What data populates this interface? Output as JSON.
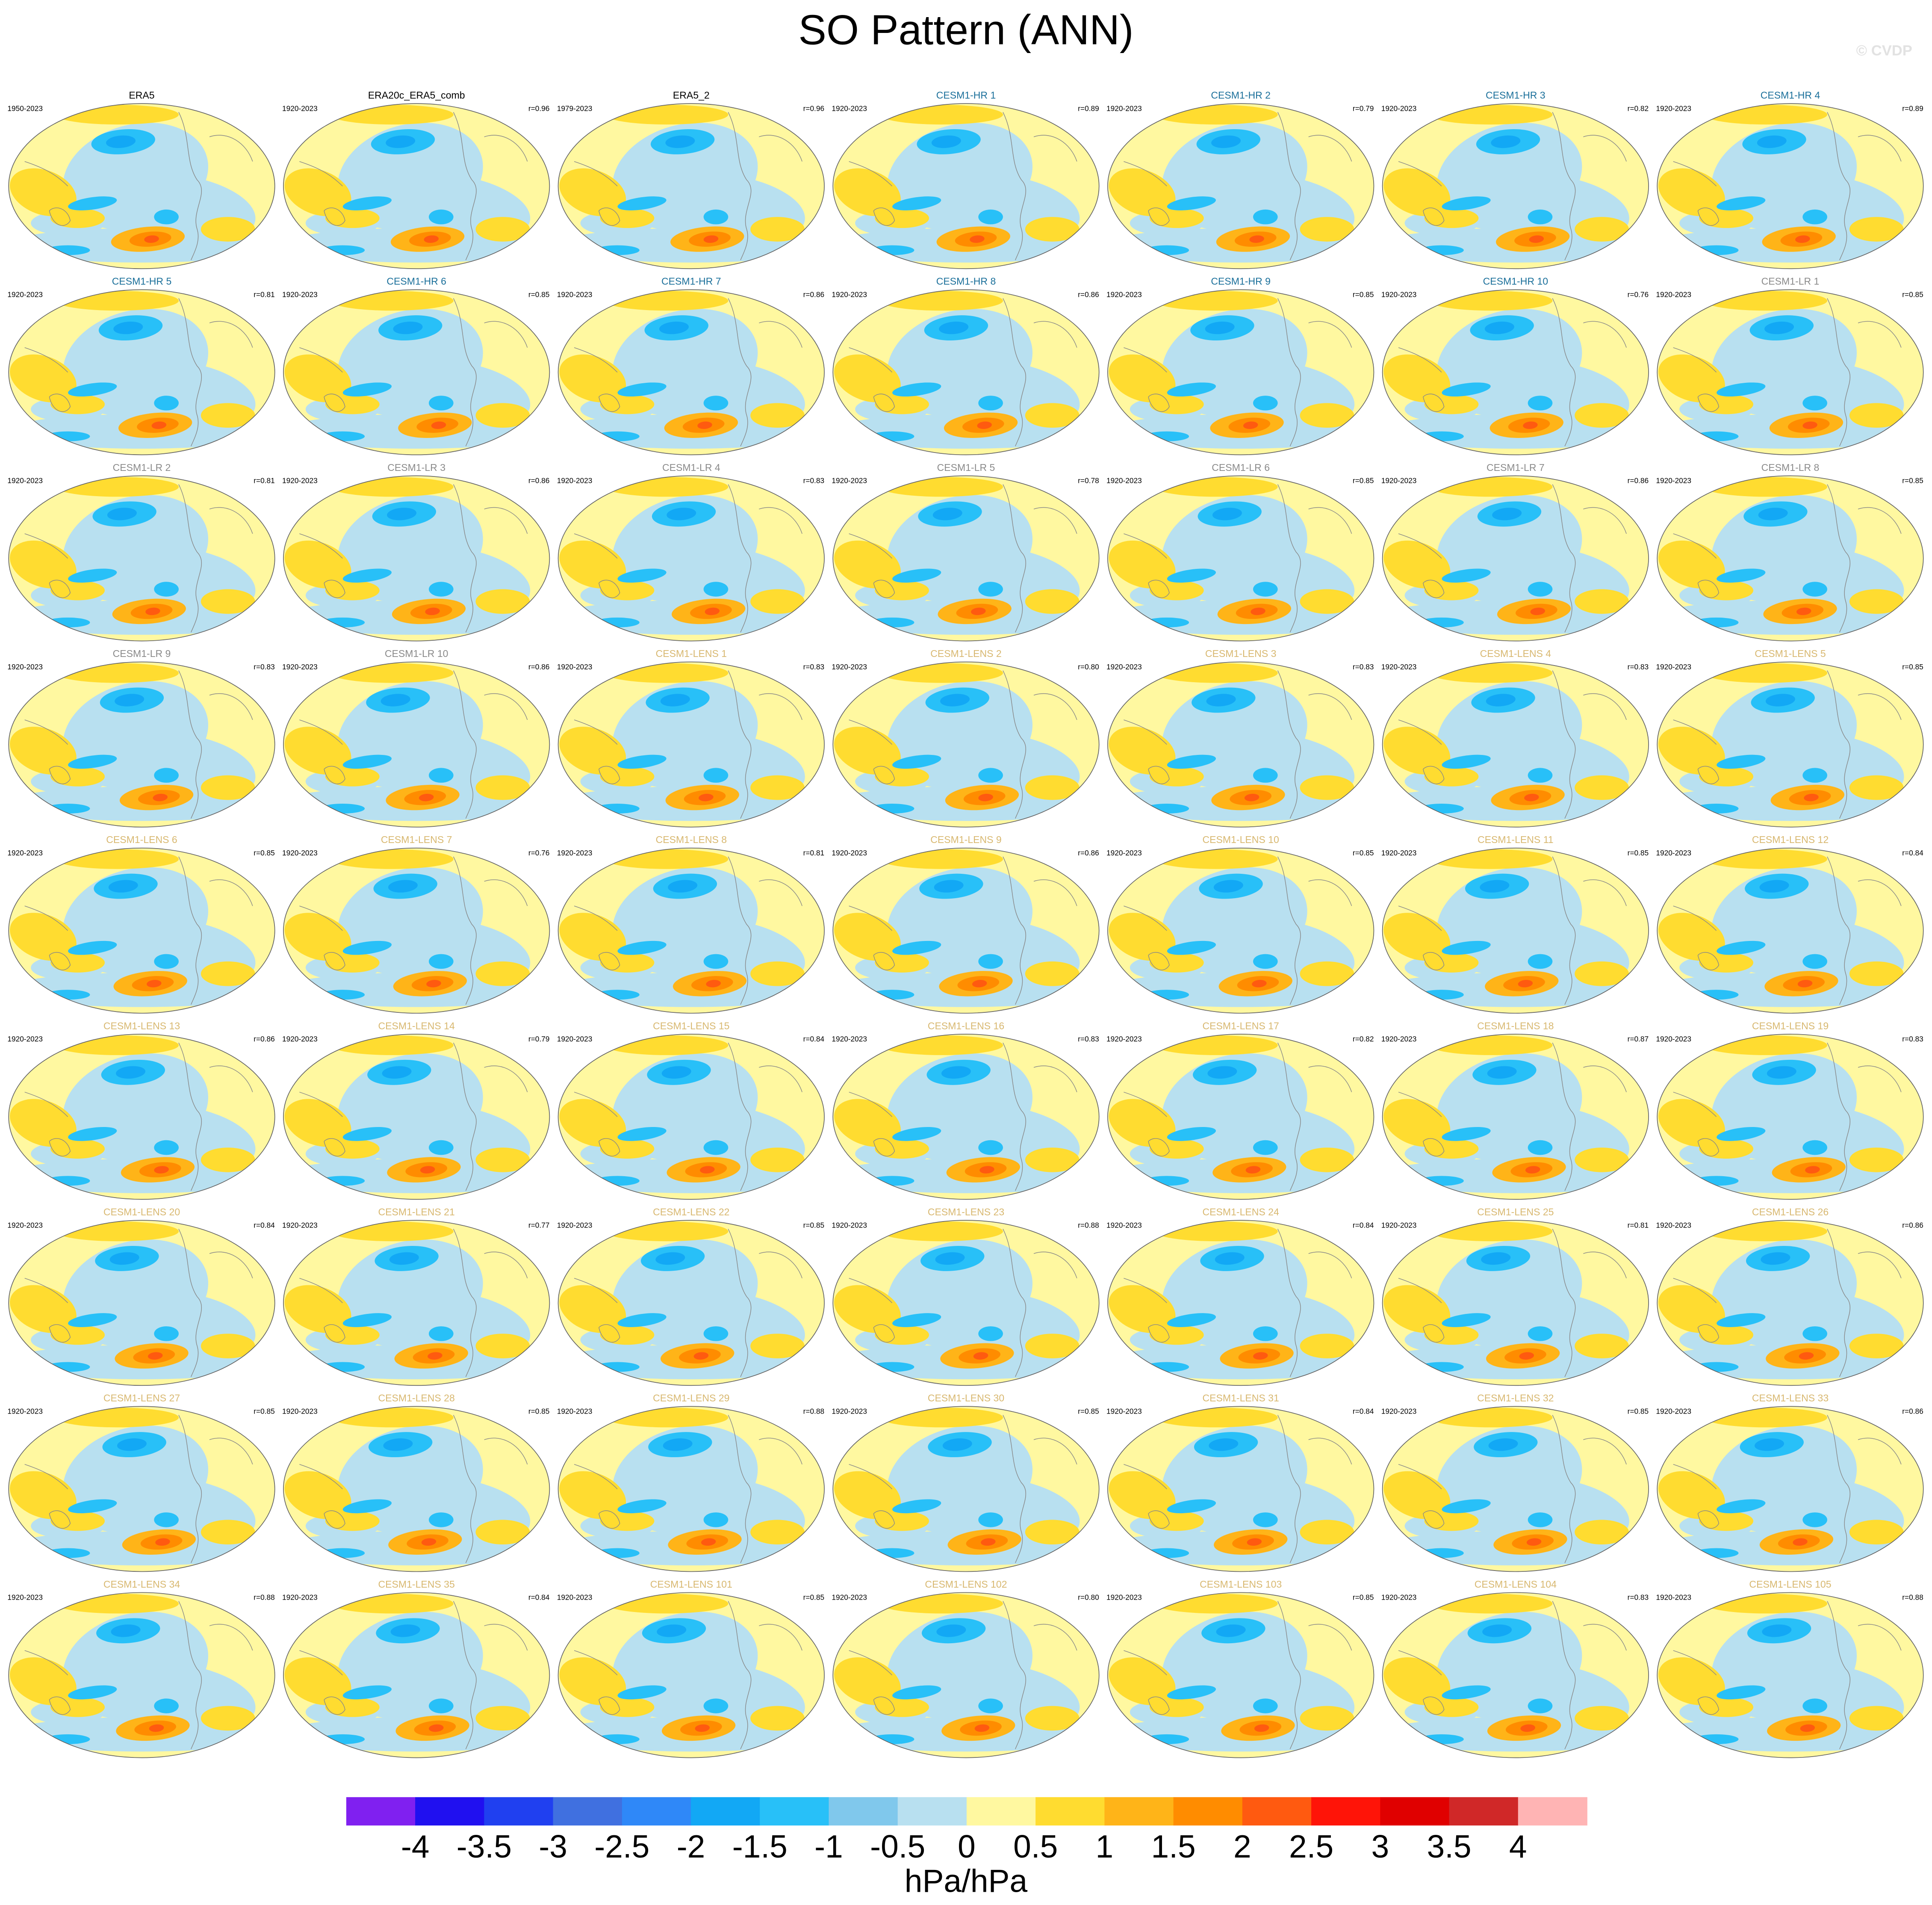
{
  "header": {
    "title": "SO Pattern (ANN)",
    "watermark": "© CVDP"
  },
  "panels": [
    {
      "title": "ERA5",
      "period": "1950-2023",
      "title_color": "#000000"
    },
    {
      "title": "ERA20c_ERA5_comb",
      "period": "1920-2023",
      "r": "r=0.96",
      "title_color": "#000000"
    },
    {
      "title": "ERA5_2",
      "period": "1979-2023",
      "r": "r=0.96",
      "title_color": "#000000"
    },
    {
      "title": "CESM1-HR 1",
      "period": "1920-2023",
      "r": "r=0.89",
      "title_color": "#1a6f9a"
    },
    {
      "title": "CESM1-HR 2",
      "period": "1920-2023",
      "r": "r=0.79",
      "title_color": "#1a6f9a"
    },
    {
      "title": "CESM1-HR 3",
      "period": "1920-2023",
      "r": "r=0.82",
      "title_color": "#1a6f9a"
    },
    {
      "title": "CESM1-HR 4",
      "period": "1920-2023",
      "r": "r=0.89",
      "title_color": "#1a6f9a"
    },
    {
      "title": "CESM1-HR 5",
      "period": "1920-2023",
      "r": "r=0.81",
      "title_color": "#1a6f9a"
    },
    {
      "title": "CESM1-HR 6",
      "period": "1920-2023",
      "r": "r=0.85",
      "title_color": "#1a6f9a"
    },
    {
      "title": "CESM1-HR 7",
      "period": "1920-2023",
      "r": "r=0.86",
      "title_color": "#1a6f9a"
    },
    {
      "title": "CESM1-HR 8",
      "period": "1920-2023",
      "r": "r=0.86",
      "title_color": "#1a6f9a"
    },
    {
      "title": "CESM1-HR 9",
      "period": "1920-2023",
      "r": "r=0.85",
      "title_color": "#1a6f9a"
    },
    {
      "title": "CESM1-HR 10",
      "period": "1920-2023",
      "r": "r=0.76",
      "title_color": "#1a6f9a"
    },
    {
      "title": "CESM1-LR 1",
      "period": "1920-2023",
      "r": "r=0.85",
      "title_color": "#8a8a8a"
    },
    {
      "title": "CESM1-LR 2",
      "period": "1920-2023",
      "r": "r=0.81",
      "title_color": "#8a8a8a"
    },
    {
      "title": "CESM1-LR 3",
      "period": "1920-2023",
      "r": "r=0.86",
      "title_color": "#8a8a8a"
    },
    {
      "title": "CESM1-LR 4",
      "period": "1920-2023",
      "r": "r=0.83",
      "title_color": "#8a8a8a"
    },
    {
      "title": "CESM1-LR 5",
      "period": "1920-2023",
      "r": "r=0.78",
      "title_color": "#8a8a8a"
    },
    {
      "title": "CESM1-LR 6",
      "period": "1920-2023",
      "r": "r=0.85",
      "title_color": "#8a8a8a"
    },
    {
      "title": "CESM1-LR 7",
      "period": "1920-2023",
      "r": "r=0.86",
      "title_color": "#8a8a8a"
    },
    {
      "title": "CESM1-LR 8",
      "period": "1920-2023",
      "r": "r=0.85",
      "title_color": "#8a8a8a"
    },
    {
      "title": "CESM1-LR 9",
      "period": "1920-2023",
      "r": "r=0.83",
      "title_color": "#8a8a8a"
    },
    {
      "title": "CESM1-LR 10",
      "period": "1920-2023",
      "r": "r=0.86",
      "title_color": "#8a8a8a"
    },
    {
      "title": "CESM1-LENS 1",
      "period": "1920-2023",
      "r": "r=0.83",
      "title_color": "#d8b870"
    },
    {
      "title": "CESM1-LENS 2",
      "period": "1920-2023",
      "r": "r=0.80",
      "title_color": "#d8b870"
    },
    {
      "title": "CESM1-LENS 3",
      "period": "1920-2023",
      "r": "r=0.83",
      "title_color": "#d8b870"
    },
    {
      "title": "CESM1-LENS 4",
      "period": "1920-2023",
      "r": "r=0.83",
      "title_color": "#d8b870"
    },
    {
      "title": "CESM1-LENS 5",
      "period": "1920-2023",
      "r": "r=0.85",
      "title_color": "#d8b870"
    },
    {
      "title": "CESM1-LENS 6",
      "period": "1920-2023",
      "r": "r=0.85",
      "title_color": "#d8b870"
    },
    {
      "title": "CESM1-LENS 7",
      "period": "1920-2023",
      "r": "r=0.76",
      "title_color": "#d8b870"
    },
    {
      "title": "CESM1-LENS 8",
      "period": "1920-2023",
      "r": "r=0.81",
      "title_color": "#d8b870"
    },
    {
      "title": "CESM1-LENS 9",
      "period": "1920-2023",
      "r": "r=0.86",
      "title_color": "#d8b870"
    },
    {
      "title": "CESM1-LENS 10",
      "period": "1920-2023",
      "r": "r=0.85",
      "title_color": "#d8b870"
    },
    {
      "title": "CESM1-LENS 11",
      "period": "1920-2023",
      "r": "r=0.85",
      "title_color": "#d8b870"
    },
    {
      "title": "CESM1-LENS 12",
      "period": "1920-2023",
      "r": "r=0.84",
      "title_color": "#d8b870"
    },
    {
      "title": "CESM1-LENS 13",
      "period": "1920-2023",
      "r": "r=0.86",
      "title_color": "#d8b870"
    },
    {
      "title": "CESM1-LENS 14",
      "period": "1920-2023",
      "r": "r=0.79",
      "title_color": "#d8b870"
    },
    {
      "title": "CESM1-LENS 15",
      "period": "1920-2023",
      "r": "r=0.84",
      "title_color": "#d8b870"
    },
    {
      "title": "CESM1-LENS 16",
      "period": "1920-2023",
      "r": "r=0.83",
      "title_color": "#d8b870"
    },
    {
      "title": "CESM1-LENS 17",
      "period": "1920-2023",
      "r": "r=0.82",
      "title_color": "#d8b870"
    },
    {
      "title": "CESM1-LENS 18",
      "period": "1920-2023",
      "r": "r=0.87",
      "title_color": "#d8b870"
    },
    {
      "title": "CESM1-LENS 19",
      "period": "1920-2023",
      "r": "r=0.83",
      "title_color": "#d8b870"
    },
    {
      "title": "CESM1-LENS 20",
      "period": "1920-2023",
      "r": "r=0.84",
      "title_color": "#d8b870"
    },
    {
      "title": "CESM1-LENS 21",
      "period": "1920-2023",
      "r": "r=0.77",
      "title_color": "#d8b870"
    },
    {
      "title": "CESM1-LENS 22",
      "period": "1920-2023",
      "r": "r=0.85",
      "title_color": "#d8b870"
    },
    {
      "title": "CESM1-LENS 23",
      "period": "1920-2023",
      "r": "r=0.88",
      "title_color": "#d8b870"
    },
    {
      "title": "CESM1-LENS 24",
      "period": "1920-2023",
      "r": "r=0.84",
      "title_color": "#d8b870"
    },
    {
      "title": "CESM1-LENS 25",
      "period": "1920-2023",
      "r": "r=0.81",
      "title_color": "#d8b870"
    },
    {
      "title": "CESM1-LENS 26",
      "period": "1920-2023",
      "r": "r=0.86",
      "title_color": "#d8b870"
    },
    {
      "title": "CESM1-LENS 27",
      "period": "1920-2023",
      "r": "r=0.85",
      "title_color": "#d8b870"
    },
    {
      "title": "CESM1-LENS 28",
      "period": "1920-2023",
      "r": "r=0.85",
      "title_color": "#d8b870"
    },
    {
      "title": "CESM1-LENS 29",
      "period": "1920-2023",
      "r": "r=0.88",
      "title_color": "#d8b870"
    },
    {
      "title": "CESM1-LENS 30",
      "period": "1920-2023",
      "r": "r=0.85",
      "title_color": "#d8b870"
    },
    {
      "title": "CESM1-LENS 31",
      "period": "1920-2023",
      "r": "r=0.84",
      "title_color": "#d8b870"
    },
    {
      "title": "CESM1-LENS 32",
      "period": "1920-2023",
      "r": "r=0.85",
      "title_color": "#d8b870"
    },
    {
      "title": "CESM1-LENS 33",
      "period": "1920-2023",
      "r": "r=0.86",
      "title_color": "#d8b870"
    },
    {
      "title": "CESM1-LENS 34",
      "period": "1920-2023",
      "r": "r=0.88",
      "title_color": "#d8b870"
    },
    {
      "title": "CESM1-LENS 35",
      "period": "1920-2023",
      "r": "r=0.84",
      "title_color": "#d8b870"
    },
    {
      "title": "CESM1-LENS 101",
      "period": "1920-2023",
      "r": "r=0.85",
      "title_color": "#d8b870"
    },
    {
      "title": "CESM1-LENS 102",
      "period": "1920-2023",
      "r": "r=0.80",
      "title_color": "#d8b870"
    },
    {
      "title": "CESM1-LENS 103",
      "period": "1920-2023",
      "r": "r=0.85",
      "title_color": "#d8b870"
    },
    {
      "title": "CESM1-LENS 104",
      "period": "1920-2023",
      "r": "r=0.83",
      "title_color": "#d8b870"
    },
    {
      "title": "CESM1-LENS 105",
      "period": "1920-2023",
      "r": "r=0.88",
      "title_color": "#d8b870"
    }
  ],
  "colorbar": {
    "levels": [
      -4,
      -3.5,
      -3,
      -2.5,
      -2,
      -1.5,
      -1,
      -0.5,
      0,
      0.5,
      1,
      1.5,
      2,
      2.5,
      3,
      3.5,
      4
    ],
    "colors": [
      "#8020f0",
      "#2010f0",
      "#2040f0",
      "#4070e0",
      "#2f88f8",
      "#12a8f5",
      "#28c0f8",
      "#80c8ec",
      "#b8e0f0",
      "#fff8a0",
      "#ffdc30",
      "#ffb418",
      "#ff8c00",
      "#ff5a10",
      "#ff1408",
      "#e00000",
      "#d02828",
      "#ffb4b4"
    ],
    "label": "hPa/hPa"
  }
}
